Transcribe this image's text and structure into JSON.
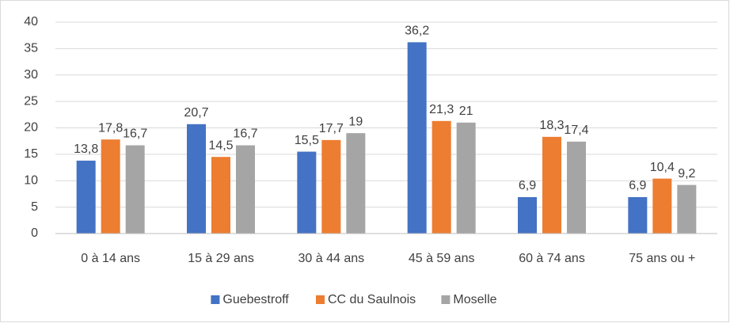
{
  "chart_data": {
    "type": "bar",
    "categories": [
      "0 à 14 ans",
      "15 à 29 ans",
      "30 à 44 ans",
      "45 à 59 ans",
      "60 à 74 ans",
      "75 ans ou +"
    ],
    "series": [
      {
        "name": "Guebestroff",
        "color": "#4472c4",
        "values": [
          13.8,
          20.7,
          15.5,
          36.2,
          6.9,
          6.9
        ],
        "value_labels": [
          "13,8",
          "20,7",
          "15,5",
          "36,2",
          "6,9",
          "6,9"
        ]
      },
      {
        "name": "CC du Saulnois",
        "color": "#ed7d31",
        "values": [
          17.8,
          14.5,
          17.7,
          21.3,
          18.3,
          10.4
        ],
        "value_labels": [
          "17,8",
          "14,5",
          "17,7",
          "21,3",
          "18,3",
          "10,4"
        ]
      },
      {
        "name": "Moselle",
        "color": "#a5a5a5",
        "values": [
          16.7,
          16.7,
          19,
          21,
          17.4,
          9.2
        ],
        "value_labels": [
          "16,7",
          "16,7",
          "19",
          "21",
          "17,4",
          "9,2"
        ]
      }
    ],
    "ylim": [
      0,
      40
    ],
    "yticks": [
      0,
      5,
      10,
      15,
      20,
      25,
      30,
      35,
      40
    ],
    "grid": true,
    "legend": "bottom"
  }
}
